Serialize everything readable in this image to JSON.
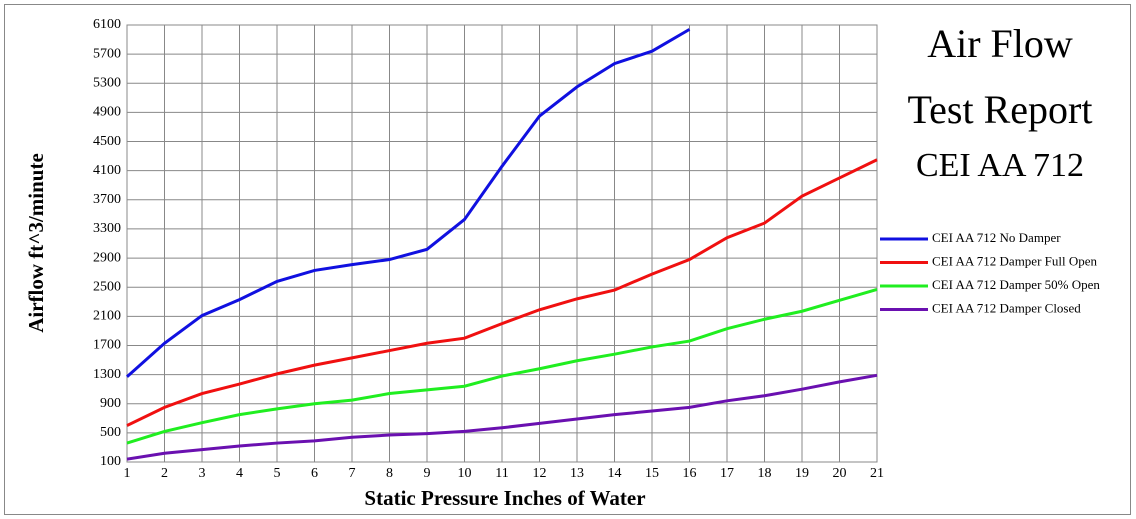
{
  "chart_data": {
    "type": "line",
    "title_lines": [
      "Air Flow",
      "Test Report",
      "CEI AA 712"
    ],
    "x_label": "Static Pressure Inches of Water",
    "y_label": "Airflow  ft^3/minute",
    "x": [
      1,
      2,
      3,
      4,
      5,
      6,
      7,
      8,
      9,
      10,
      11,
      12,
      13,
      14,
      15,
      16,
      17,
      18,
      19,
      20,
      21
    ],
    "xlim": [
      1,
      21
    ],
    "ylim": [
      100,
      6100
    ],
    "yticks": [
      100,
      500,
      900,
      1300,
      1700,
      2100,
      2500,
      2900,
      3300,
      3700,
      4100,
      4500,
      4900,
      5300,
      5700,
      6100
    ],
    "grid": true,
    "series": [
      {
        "name": "CEI AA 712 No Damper",
        "color": "#1010e0",
        "values": [
          1270,
          1730,
          2110,
          2330,
          2580,
          2730,
          2810,
          2880,
          3020,
          3430,
          4160,
          4850,
          5250,
          5570,
          5740,
          6040,
          null,
          null,
          null,
          null,
          null
        ]
      },
      {
        "name": "CEI AA 712 Damper Full Open",
        "color": "#f01010",
        "values": [
          600,
          850,
          1040,
          1170,
          1310,
          1430,
          1530,
          1630,
          1730,
          1800,
          2000,
          2190,
          2340,
          2460,
          2680,
          2880,
          3180,
          3380,
          3750,
          4000,
          4250
        ]
      },
      {
        "name": "CEI AA 712 Damper 50% Open",
        "color": "#20ee20",
        "values": [
          360,
          520,
          640,
          750,
          830,
          900,
          950,
          1040,
          1090,
          1140,
          1280,
          1380,
          1490,
          1580,
          1680,
          1760,
          1930,
          2060,
          2170,
          2320,
          2470
        ]
      },
      {
        "name": "CEI AA 712 Damper Closed",
        "color": "#6a10b0",
        "values": [
          140,
          220,
          270,
          320,
          360,
          390,
          440,
          470,
          490,
          520,
          570,
          630,
          690,
          750,
          800,
          850,
          940,
          1010,
          1100,
          1200,
          1290
        ]
      }
    ]
  }
}
